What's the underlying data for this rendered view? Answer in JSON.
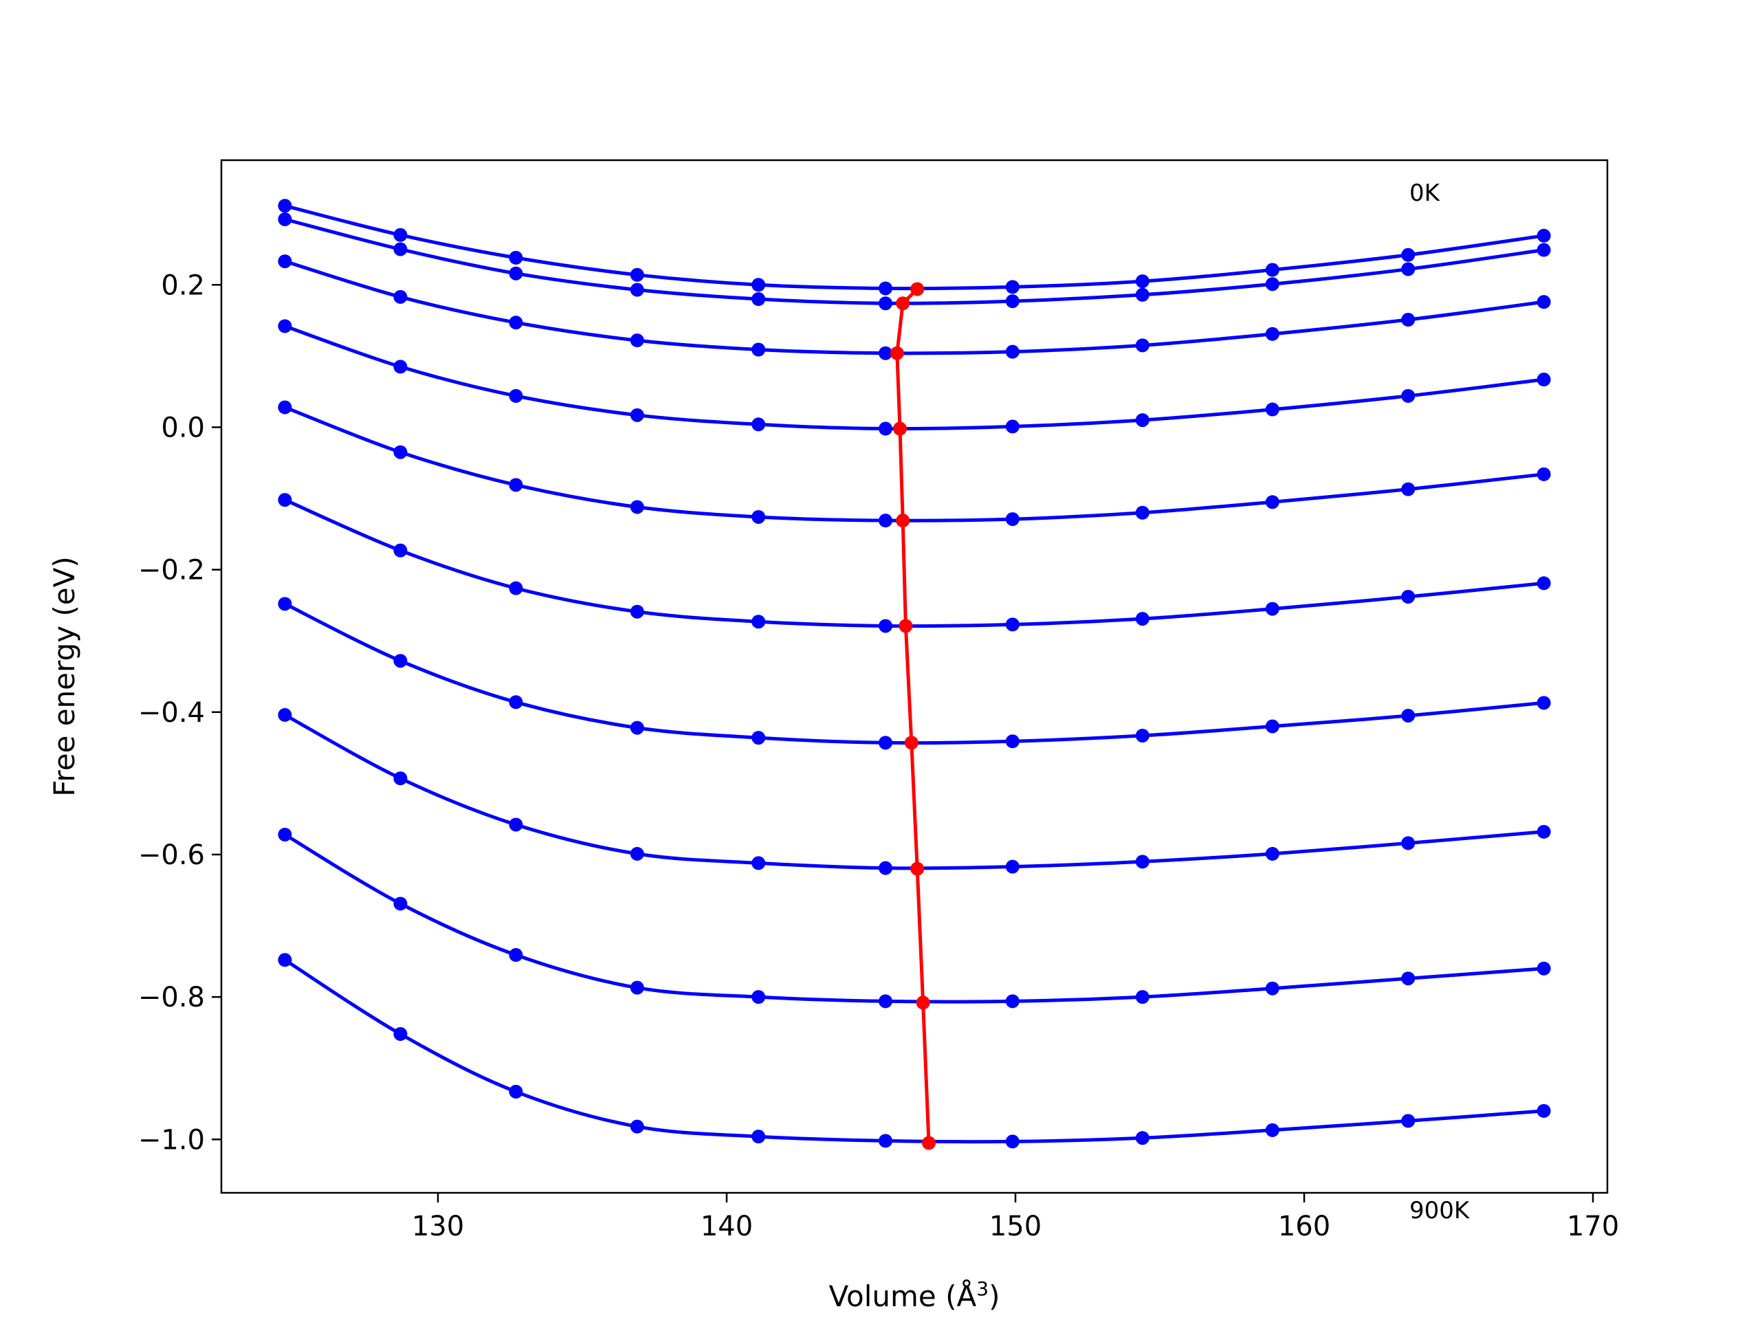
{
  "chart_data": {
    "type": "line",
    "title": "",
    "xlabel": "Volume (Å",
    "xlabel_sup": "3",
    "xlabel_close": ")",
    "ylabel": "Free energy (eV)",
    "xlim": [
      122.5,
      170.5
    ],
    "ylim": [
      -1.075,
      0.375
    ],
    "xticks": [
      130,
      140,
      150,
      160,
      170
    ],
    "yticks": [
      -1.0,
      -0.8,
      -0.6,
      -0.4,
      -0.2,
      0.0,
      0.2
    ],
    "xtick_labels": [
      "130",
      "140",
      "150",
      "160",
      "170"
    ],
    "ytick_labels": [
      "−1.0",
      "−0.8",
      "−0.6",
      "−0.4",
      "−0.2",
      "0.0",
      "0.2"
    ],
    "annotations": [
      {
        "text": "0K",
        "anchor": "top-right"
      },
      {
        "text": "900K",
        "anchor": "bottom-right"
      }
    ],
    "x": [
      124.7,
      128.7,
      132.7,
      136.9,
      141.1,
      145.5,
      149.9,
      154.4,
      158.9,
      163.6,
      168.3
    ],
    "series": [
      {
        "color": "#0000ff",
        "values": [
          0.311,
          0.27,
          0.238,
          0.214,
          0.2,
          0.195,
          0.197,
          0.205,
          0.221,
          0.242,
          0.269
        ]
      },
      {
        "color": "#0000ff",
        "values": [
          0.292,
          0.25,
          0.216,
          0.193,
          0.18,
          0.174,
          0.177,
          0.186,
          0.201,
          0.222,
          0.249
        ]
      },
      {
        "color": "#0000ff",
        "values": [
          0.233,
          0.183,
          0.147,
          0.122,
          0.109,
          0.104,
          0.106,
          0.115,
          0.131,
          0.151,
          0.176
        ]
      },
      {
        "color": "#0000ff",
        "values": [
          0.142,
          0.085,
          0.044,
          0.017,
          0.004,
          -0.002,
          0.001,
          0.01,
          0.025,
          0.044,
          0.067
        ]
      },
      {
        "color": "#0000ff",
        "values": [
          0.028,
          -0.035,
          -0.081,
          -0.112,
          -0.126,
          -0.131,
          -0.129,
          -0.12,
          -0.105,
          -0.087,
          -0.066
        ]
      },
      {
        "color": "#0000ff",
        "values": [
          -0.102,
          -0.173,
          -0.226,
          -0.259,
          -0.273,
          -0.279,
          -0.277,
          -0.269,
          -0.255,
          -0.238,
          -0.219
        ]
      },
      {
        "color": "#0000ff",
        "values": [
          -0.248,
          -0.328,
          -0.386,
          -0.422,
          -0.436,
          -0.443,
          -0.441,
          -0.433,
          -0.42,
          -0.405,
          -0.387
        ]
      },
      {
        "color": "#0000ff",
        "values": [
          -0.404,
          -0.493,
          -0.558,
          -0.599,
          -0.612,
          -0.619,
          -0.617,
          -0.61,
          -0.599,
          -0.584,
          -0.568
        ]
      },
      {
        "color": "#0000ff",
        "values": [
          -0.572,
          -0.669,
          -0.741,
          -0.787,
          -0.8,
          -0.806,
          -0.806,
          -0.8,
          -0.788,
          -0.774,
          -0.76
        ]
      },
      {
        "color": "#0000ff",
        "values": [
          -0.748,
          -0.852,
          -0.933,
          -0.982,
          -0.996,
          -1.002,
          -1.003,
          -0.998,
          -0.987,
          -0.974,
          -0.96
        ]
      }
    ],
    "minimum_path": {
      "color": "#ff0000",
      "x": [
        146.6,
        146.1,
        145.9,
        146.0,
        146.1,
        146.2,
        146.4,
        146.6,
        146.8,
        147.0
      ],
      "y": [
        0.194,
        0.174,
        0.104,
        -0.002,
        -0.131,
        -0.279,
        -0.443,
        -0.62,
        -0.808,
        -1.005
      ]
    }
  }
}
